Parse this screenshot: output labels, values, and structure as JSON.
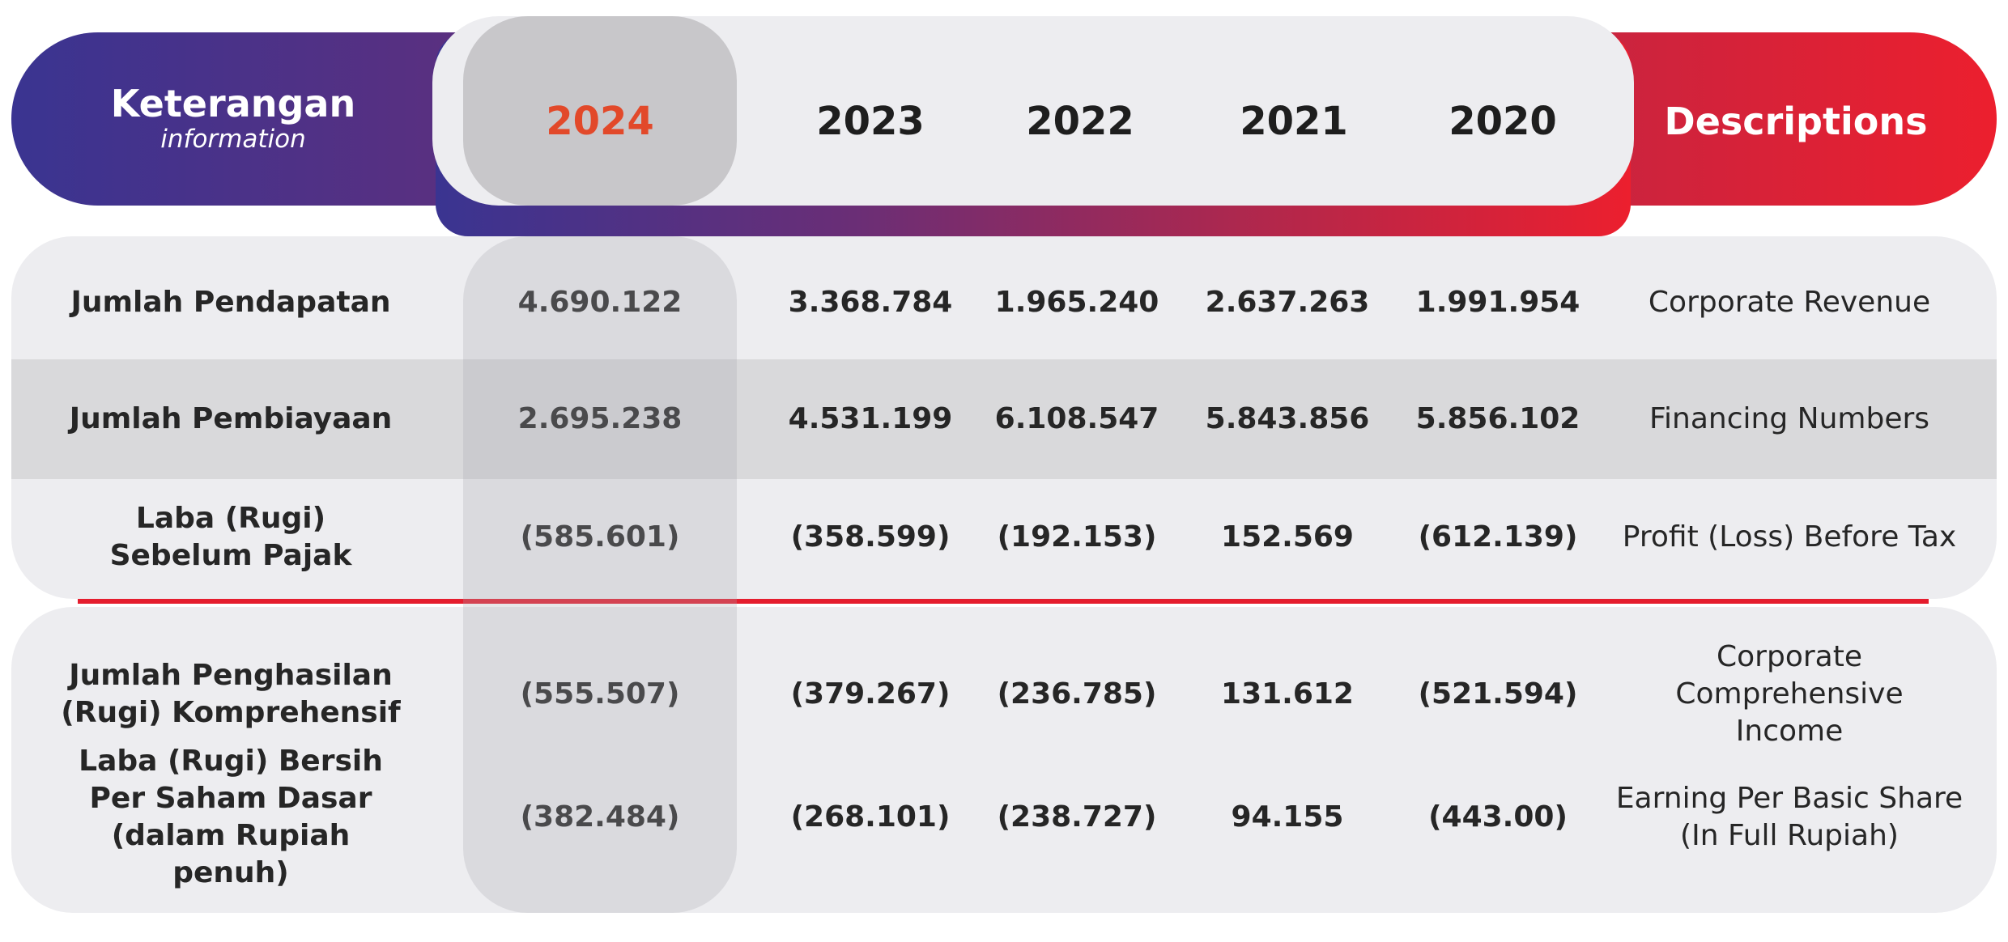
{
  "header": {
    "keterangan": "Keterangan",
    "information": "information",
    "descriptions": "Descriptions",
    "years": [
      "2024",
      "2023",
      "2022",
      "2021",
      "2020"
    ],
    "highlight_color": "#e2492a",
    "gradient_start": "#3a3491",
    "gradient_end": "#ec1f2e"
  },
  "rows": [
    {
      "label": "Jumlah Pendapatan",
      "values": [
        "4.690.122",
        "3.368.784",
        "1.965.240",
        "2.637.263",
        "1.991.954"
      ],
      "description": "Corporate Revenue"
    },
    {
      "label": "Jumlah Pembiayaan",
      "values": [
        "2.695.238",
        "4.531.199",
        "6.108.547",
        "5.843.856",
        "5.856.102"
      ],
      "description": "Financing Numbers"
    },
    {
      "label": "Laba (Rugi) Sebelum Pajak",
      "values": [
        "(585.601)",
        "(358.599)",
        "(192.153)",
        "152.569",
        "(612.139)"
      ],
      "description": "Profit (Loss) Before Tax"
    },
    {
      "label": "Jumlah Penghasilan (Rugi) Komprehensif",
      "values": [
        "(555.507)",
        "(379.267)",
        "(236.785)",
        "131.612",
        "(521.594)"
      ],
      "description": "Corporate Comprehensive Income"
    },
    {
      "label": "Laba (Rugi) Bersih Per Saham Dasar (dalam Rupiah penuh)",
      "values": [
        "(382.484)",
        "(268.101)",
        "(238.727)",
        "94.155",
        "(443.00)"
      ],
      "description": "Earning Per Basic Share (In Full Rupiah)"
    }
  ]
}
